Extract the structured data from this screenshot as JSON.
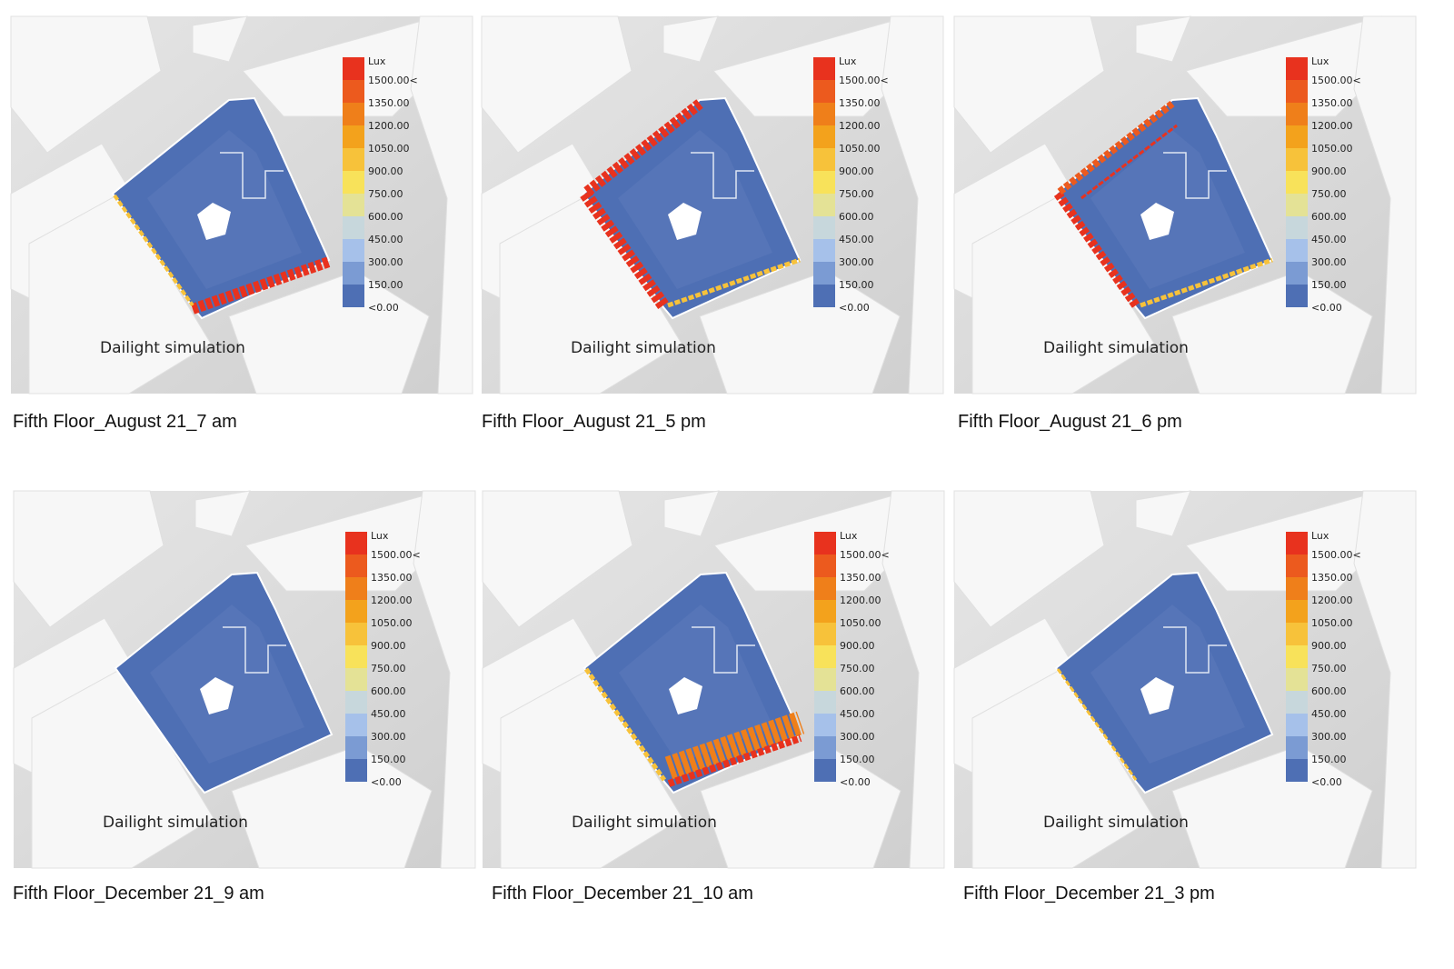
{
  "legend": {
    "title": "Lux",
    "labels": [
      "1500.00<",
      "1350.00",
      "1200.00",
      "1050.00",
      "900.00",
      "750.00",
      "600.00",
      "450.00",
      "300.00",
      "150.00",
      "<0.00"
    ],
    "colors": [
      "#e8321e",
      "#ec5a1e",
      "#ef7f1a",
      "#f3a21c",
      "#f7c23a",
      "#f8e25a",
      "#e4e296",
      "#c7d7dc",
      "#a6c1ea",
      "#7b9bd3",
      "#4e6fb4"
    ]
  },
  "map_label": "Dailight simulation",
  "panels": [
    {
      "caption": "Fifth Floor_August 21_7 am"
    },
    {
      "caption": "Fifth Floor_August 21_5 pm"
    },
    {
      "caption": "Fifth Floor_August 21_6 pm"
    },
    {
      "caption": "Fifth Floor_December 21_9 am"
    },
    {
      "caption": "Fifth Floor_December 21_10 am"
    },
    {
      "caption": "Fifth Floor_December 21_3 pm"
    }
  ]
}
